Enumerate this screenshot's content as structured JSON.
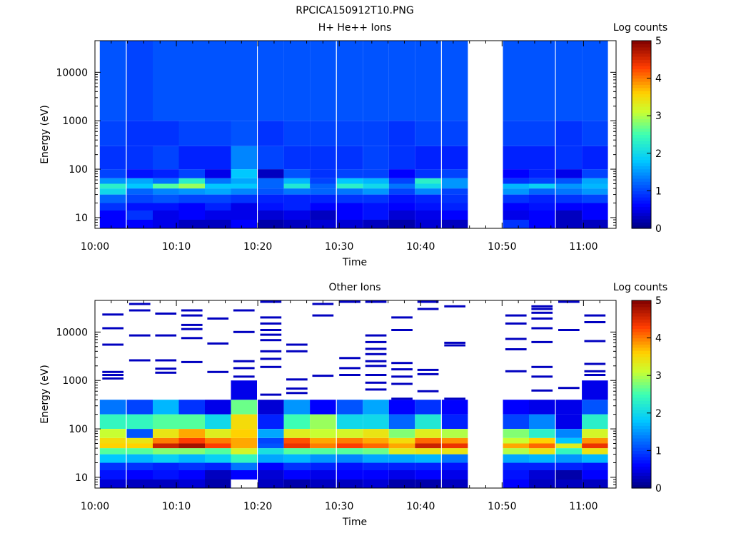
{
  "figure": {
    "title": "RPCICA150912T10.PNG"
  },
  "chart_data": [
    {
      "type": "heatmap",
      "title": "H+ He++ Ions",
      "xlabel": "Time",
      "ylabel": "Energy (eV)",
      "x_ticks": [
        "10:00",
        "10:10",
        "10:20",
        "10:30",
        "10:40",
        "10:50",
        "11:00"
      ],
      "x_range_minutes": [
        0,
        64
      ],
      "y_scale": "log",
      "y_range": [
        6,
        45000
      ],
      "y_ticks": [
        "10",
        "100",
        "1000",
        "10000"
      ],
      "colorbar": {
        "label": "Log counts",
        "range": [
          0,
          5
        ],
        "ticks": [
          "0",
          "1",
          "2",
          "3",
          "4",
          "5"
        ]
      },
      "data_gap_minutes": [
        47,
        50
      ],
      "time_bins_minutes": [
        2.2,
        5.5,
        8.7,
        11.9,
        15.1,
        18.3,
        21.6,
        24.8,
        28.0,
        31.3,
        34.5,
        37.7,
        40.9,
        44.2,
        51.7,
        54.9,
        58.2,
        61.4
      ],
      "energy_bands_eV": [
        "6-9",
        "9-14",
        "14-20",
        "20-30",
        "30-40",
        "40-50",
        "50-65",
        "65-100",
        "100-300",
        "300-1000",
        "1000-45000"
      ],
      "log_counts": [
        [
          0.6,
          0.6,
          0.9,
          1.2,
          2.0,
          2.3,
          1.5,
          1.0,
          0.9,
          1.0,
          1.1
        ],
        [
          0.6,
          0.9,
          0.7,
          1.0,
          1.2,
          1.8,
          1.6,
          0.7,
          0.9,
          0.9,
          1.0
        ],
        [
          0.5,
          0.5,
          0.7,
          1.1,
          1.4,
          2.6,
          1.3,
          0.8,
          1.0,
          0.9,
          1.1
        ],
        [
          0.3,
          0.6,
          0.6,
          1.0,
          1.5,
          2.9,
          2.3,
          1.0,
          0.8,
          1.0,
          1.1
        ],
        [
          0.3,
          0.5,
          0.8,
          1.0,
          1.6,
          1.8,
          1.3,
          0.5,
          0.8,
          1.0,
          1.1
        ],
        [
          0.6,
          0.5,
          0.5,
          0.9,
          1.4,
          1.8,
          1.6,
          1.8,
          1.4,
          1.1,
          1.1
        ],
        [
          0.2,
          0.4,
          0.7,
          0.8,
          1.1,
          1.2,
          1.2,
          0.3,
          1.0,
          0.9,
          1.1
        ],
        [
          0.3,
          0.5,
          0.8,
          0.8,
          1.3,
          2.2,
          1.7,
          1.1,
          0.9,
          1.0,
          1.1
        ],
        [
          0.4,
          0.3,
          0.6,
          0.8,
          1.2,
          1.2,
          1.0,
          0.9,
          0.9,
          1.0,
          1.1
        ],
        [
          0.4,
          0.6,
          0.6,
          0.9,
          1.3,
          2.3,
          1.8,
          1.0,
          0.9,
          1.0,
          1.1
        ],
        [
          0.3,
          0.7,
          0.7,
          0.9,
          1.5,
          2.0,
          1.7,
          1.0,
          1.0,
          1.0,
          1.1
        ],
        [
          0.2,
          0.4,
          0.6,
          0.7,
          1.0,
          1.3,
          1.0,
          0.6,
          0.9,
          0.9,
          1.1
        ],
        [
          0.4,
          0.5,
          0.7,
          0.8,
          1.4,
          2.0,
          2.3,
          0.9,
          0.8,
          1.0,
          1.1
        ],
        [
          0.3,
          0.6,
          0.8,
          0.9,
          1.0,
          1.5,
          1.5,
          1.0,
          0.8,
          1.0,
          1.1
        ],
        [
          0.9,
          0.5,
          0.6,
          0.9,
          1.5,
          1.7,
          0.9,
          0.6,
          0.8,
          1.0,
          1.1
        ],
        [
          0.6,
          0.6,
          0.7,
          0.8,
          1.2,
          1.9,
          1.0,
          0.8,
          0.8,
          1.0,
          1.1
        ],
        [
          0.3,
          0.3,
          0.6,
          0.9,
          1.3,
          1.5,
          1.1,
          0.5,
          0.9,
          0.9,
          1.1
        ],
        [
          0.3,
          0.6,
          0.6,
          1.0,
          1.5,
          1.7,
          1.6,
          1.0,
          0.8,
          1.0,
          1.1
        ]
      ]
    },
    {
      "type": "heatmap",
      "title": "Other Ions",
      "xlabel": "Time",
      "ylabel": "Energy (eV)",
      "x_ticks": [
        "10:00",
        "10:10",
        "10:20",
        "10:30",
        "10:40",
        "10:50",
        "11:00"
      ],
      "x_range_minutes": [
        0,
        64
      ],
      "y_scale": "log",
      "y_range": [
        6,
        45000
      ],
      "y_ticks": [
        "10",
        "100",
        "1000",
        "10000"
      ],
      "colorbar": {
        "label": "Log counts",
        "range": [
          0,
          5
        ],
        "ticks": [
          "0",
          "1",
          "2",
          "3",
          "4",
          "5"
        ]
      },
      "data_gap_minutes": [
        47,
        50
      ],
      "time_bins_minutes": [
        2.2,
        5.5,
        8.7,
        11.9,
        15.1,
        18.3,
        21.6,
        24.8,
        28.0,
        31.3,
        34.5,
        37.7,
        40.9,
        44.2,
        51.7,
        54.9,
        58.2,
        61.4
      ],
      "energy_bands_eV": [
        "6-9",
        "9-14",
        "14-20",
        "20-30",
        "30-40",
        "40-50",
        "50-65",
        "65-100",
        "100-200",
        "200-400",
        "400-1000"
      ],
      "log_counts": [
        [
          0.4,
          0.7,
          0.9,
          1.8,
          2.6,
          3.6,
          3.5,
          3.1,
          2.4,
          1.3,
          null
        ],
        [
          0.3,
          0.6,
          0.9,
          1.7,
          2.6,
          3.6,
          3.4,
          1.1,
          2.4,
          1.0,
          null
        ],
        [
          0.3,
          0.7,
          0.8,
          1.9,
          2.8,
          4.6,
          4.0,
          3.4,
          2.6,
          1.7,
          null
        ],
        [
          0.4,
          0.6,
          0.9,
          1.7,
          2.8,
          4.8,
          4.3,
          3.8,
          2.6,
          0.9,
          null
        ],
        [
          0.2,
          0.3,
          0.8,
          1.9,
          2.6,
          4.3,
          4.0,
          3.3,
          2.0,
          0.5,
          null
        ],
        [
          null,
          0.6,
          1.3,
          2.4,
          3.2,
          3.8,
          3.8,
          3.6,
          3.5,
          2.7,
          0.5
        ],
        [
          0.3,
          0.4,
          0.6,
          1.6,
          2.1,
          1.1,
          1.0,
          1.6,
          0.8,
          0.4,
          null
        ],
        [
          0.2,
          0.6,
          0.9,
          1.7,
          2.6,
          4.4,
          4.2,
          3.3,
          2.5,
          1.5,
          null
        ],
        [
          0.3,
          0.5,
          0.8,
          1.5,
          2.6,
          4.0,
          3.8,
          3.1,
          2.9,
          0.6,
          null
        ],
        [
          0.3,
          0.6,
          0.7,
          1.4,
          2.6,
          4.3,
          4.0,
          3.2,
          2.0,
          1.1,
          null
        ],
        [
          0.4,
          0.6,
          0.8,
          1.6,
          2.7,
          4.1,
          3.8,
          3.4,
          2.0,
          1.6,
          null
        ],
        [
          0.2,
          0.5,
          0.8,
          1.6,
          3.3,
          3.8,
          3.5,
          2.8,
          1.2,
          0.6,
          null
        ],
        [
          0.2,
          0.6,
          0.8,
          1.7,
          3.4,
          4.6,
          4.1,
          3.3,
          2.2,
          0.9,
          null
        ],
        [
          0.3,
          0.5,
          0.7,
          1.3,
          3.4,
          4.4,
          3.9,
          3.0,
          0.8,
          0.6,
          null
        ],
        [
          0.6,
          0.7,
          0.8,
          1.6,
          3.0,
          3.8,
          3.1,
          2.8,
          1.0,
          0.6,
          null
        ],
        [
          0.3,
          0.4,
          0.8,
          1.7,
          3.4,
          4.1,
          3.6,
          2.3,
          1.4,
          0.5,
          null
        ],
        [
          0.3,
          0.2,
          0.8,
          1.5,
          2.4,
          3.3,
          1.8,
          1.4,
          0.5,
          0.5,
          null
        ],
        [
          0.3,
          0.6,
          0.7,
          1.7,
          3.4,
          4.4,
          3.9,
          3.2,
          2.3,
          1.1,
          0.5
        ]
      ],
      "sparse_high_energy_lines": [
        {
          "bin": 0,
          "energies_eV": [
            1100,
            1300,
            1500,
            5500,
            12000,
            23000
          ]
        },
        {
          "bin": 1,
          "energies_eV": [
            2600,
            8500,
            28000,
            38000
          ]
        },
        {
          "bin": 2,
          "energies_eV": [
            1450,
            1750,
            2600,
            8500,
            24000
          ]
        },
        {
          "bin": 3,
          "energies_eV": [
            2400,
            7500,
            11500,
            14000,
            22000,
            28000
          ]
        },
        {
          "bin": 4,
          "energies_eV": [
            1500,
            5800,
            19000
          ]
        },
        {
          "bin": 5,
          "energies_eV": [
            1200,
            1800,
            2500,
            10000,
            28000
          ]
        },
        {
          "bin": 6,
          "energies_eV": [
            510,
            1900,
            2800,
            4000,
            6800,
            8800,
            11000,
            15000,
            20000,
            42000
          ]
        },
        {
          "bin": 7,
          "energies_eV": [
            550,
            680,
            1050,
            4000,
            5500
          ]
        },
        {
          "bin": 8,
          "energies_eV": [
            1250,
            22000,
            38000
          ]
        },
        {
          "bin": 9,
          "energies_eV": [
            1300,
            1800,
            2900,
            42000
          ]
        },
        {
          "bin": 10,
          "energies_eV": [
            650,
            900,
            1300,
            2000,
            2500,
            3500,
            4500,
            6200,
            8500,
            42000
          ]
        },
        {
          "bin": 11,
          "energies_eV": [
            420,
            850,
            1200,
            1700,
            2300,
            11000,
            20000
          ]
        },
        {
          "bin": 12,
          "energies_eV": [
            600,
            1350,
            1650,
            30000,
            42000
          ]
        },
        {
          "bin": 13,
          "energies_eV": [
            420,
            5300,
            6000,
            34000
          ]
        },
        {
          "bin": 14,
          "energies_eV": [
            1550,
            4400,
            7200,
            15000,
            22000
          ]
        },
        {
          "bin": 15,
          "energies_eV": [
            620,
            1200,
            1900,
            6200,
            12000,
            19000,
            25000,
            30000,
            34000
          ]
        },
        {
          "bin": 16,
          "energies_eV": [
            700,
            11000,
            42000
          ]
        },
        {
          "bin": 17,
          "energies_eV": [
            1300,
            1550,
            2200,
            6500,
            16000,
            22000
          ]
        }
      ]
    }
  ]
}
